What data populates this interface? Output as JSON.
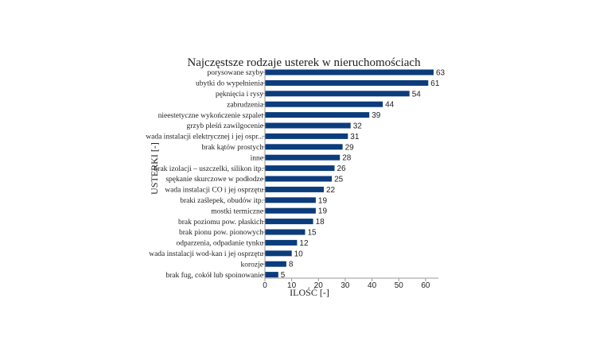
{
  "chart_data": {
    "type": "bar",
    "orientation": "horizontal",
    "title": "Najczęstsze rodzaje usterek w nieruchomościach",
    "xlabel": "ILOŚĆ [-]",
    "ylabel": "USTERKI [-]",
    "xlim": [
      0,
      65
    ],
    "xticks": [
      "0",
      "10",
      "20",
      "30",
      "40",
      "50",
      "60"
    ],
    "grid": false,
    "bar_color": "#0b3c7c",
    "categories": [
      "porysowane szyby",
      "ubytki do wypełnienia",
      "pęknięcia i rysy",
      "zabrudzenia",
      "nieestetyczne wykończenie szpalet",
      "grzyb pleśń zawilgocenie",
      "wada instalacji elektrycznej i jej ospr...",
      "brak kątów prostych",
      "inne",
      "brak izolacji – uszczelki, silikon itp.",
      "spękanie skurczowe w podłodze",
      "wada instalacji CO i jej osprzętu",
      "braki zaślepek, obudów itp.",
      "mostki termiczne",
      "brak poziomu pow. płaskich",
      "brak pionu pow. pionowych",
      "odparzenia, odpadanie tynku",
      "wada instalacji wod-kan i jej osprzętu",
      "korozje",
      "brak fug, cokół lub spoinowanie"
    ],
    "values": [
      63,
      61,
      54,
      44,
      39,
      32,
      31,
      29,
      28,
      26,
      25,
      22,
      19,
      19,
      18,
      15,
      12,
      10,
      8,
      5
    ]
  }
}
